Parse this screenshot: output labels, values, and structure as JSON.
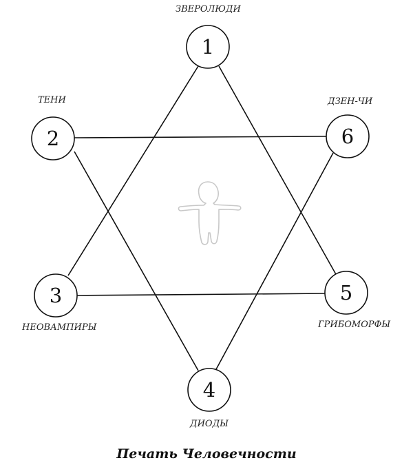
{
  "title": "Печать Человечности",
  "nodes": [
    {
      "number": "1",
      "label": "ЗВЕРОЛЮДИ"
    },
    {
      "number": "2",
      "label": "ТЕНИ"
    },
    {
      "number": "3",
      "label": "НЕОВАМПИРЫ"
    },
    {
      "number": "4",
      "label": "ДИОДЫ"
    },
    {
      "number": "5",
      "label": "ГРИБОМОРФЫ"
    },
    {
      "number": "6",
      "label": "ДЗЕН-ЧИ"
    }
  ],
  "colors": {
    "line": "#111111",
    "figure": "#cccccc"
  },
  "icons": {
    "center": "human-figure-icon"
  }
}
